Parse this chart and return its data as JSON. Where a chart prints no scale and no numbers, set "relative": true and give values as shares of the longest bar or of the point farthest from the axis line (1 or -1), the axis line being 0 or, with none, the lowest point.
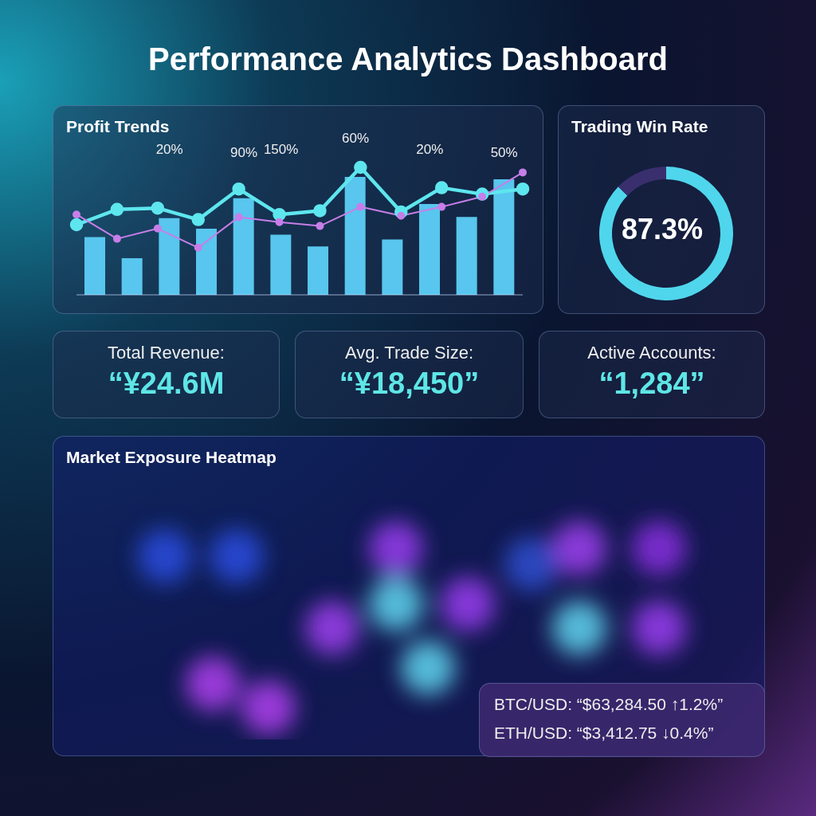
{
  "chart_data": [
    {
      "type": "other",
      "title": "Performance Analytics Dashboard"
    },
    {
      "type": "bar",
      "title": "Profit Trends",
      "relative": true,
      "categories": [
        null,
        null,
        null,
        null,
        null,
        null,
        null,
        null,
        null,
        null,
        null,
        null
      ],
      "grid": false,
      "legend": false,
      "series": [
        {
          "color": "#58c6ee",
          "values": [
            0.49,
            0.31,
            0.65,
            0.56,
            0.82,
            0.51,
            0.41,
            1,
            0.47,
            0.77,
            0.66,
            0.98
          ]
        }
      ],
      "annotations": [
        "20%",
        "90%",
        "150%",
        "60%",
        "20%",
        "50%"
      ]
    },
    {
      "type": "line",
      "relative": true,
      "categories": [
        null,
        null,
        null,
        null,
        null,
        null,
        null,
        null,
        null,
        null,
        null,
        null
      ],
      "marker": "circle",
      "grid": false,
      "legend": false,
      "series": [
        {
          "color": "#5ee6ee",
          "values": [
            0.55,
            0.67,
            0.68,
            0.59,
            0.83,
            0.63,
            0.66,
            1,
            0.65,
            0.84,
            0.79,
            0.83
          ]
        },
        {
          "color": "#c77ee8",
          "values": [
            0.63,
            0.44,
            0.52,
            0.37,
            0.61,
            0.57,
            0.54,
            0.69,
            0.62,
            0.69,
            0.77,
            0.96
          ]
        }
      ]
    },
    {
      "type": "donut",
      "title": "Trading Win Rate",
      "categories": [
        null,
        null
      ],
      "values": [
        87.3,
        12.7
      ],
      "colors": [
        "#4fd6ec",
        "#3a2f6e"
      ],
      "annotations": [
        "87.3%"
      ]
    },
    {
      "type": "other",
      "title": "Total Revenue:",
      "annotations": [
        "“¥24.6M"
      ]
    },
    {
      "type": "other",
      "title": "Avg. Trade Size:",
      "annotations": [
        "“¥18,450”"
      ]
    },
    {
      "type": "other",
      "title": "Active Accounts:",
      "annotations": [
        "“1,284”"
      ]
    },
    {
      "type": "other",
      "title": "Market Exposure Heatmap"
    },
    {
      "type": "other",
      "annotations": [
        "BTC/USD: “$63,284.50 ↑1.2%”",
        "ETH/USD: “$3,412.75 ↓0.4%”"
      ]
    }
  ]
}
